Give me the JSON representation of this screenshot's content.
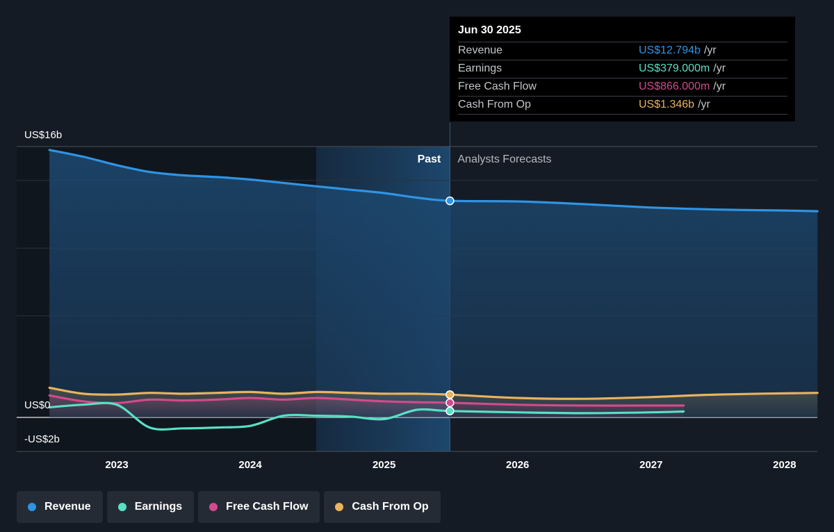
{
  "chart_data": {
    "type": "line",
    "x_ticks": [
      "2023",
      "2024",
      "2025",
      "2026",
      "2027",
      "2028"
    ],
    "y_ticks": [
      {
        "value": 16,
        "label": "US$16b"
      },
      {
        "value": 0,
        "label": "US$0"
      },
      {
        "value": -2,
        "label": "-US$2b"
      }
    ],
    "ylim": [
      -2,
      16
    ],
    "divider_labels": {
      "past": "Past",
      "forecast": "Analysts Forecasts"
    },
    "series": [
      {
        "name": "Revenue",
        "color": "#2f94e4",
        "x": [
          "2022-07-01",
          "2022-10-01",
          "2023-01-01",
          "2023-04-01",
          "2023-07-01",
          "2023-10-01",
          "2024-01-01",
          "2024-04-01",
          "2024-07-01",
          "2024-10-01",
          "2025-01-01",
          "2025-04-01",
          "2025-06-30",
          "2025-12-31",
          "2026-06-30",
          "2026-12-31",
          "2027-06-30",
          "2027-12-31",
          "2028-03-31"
        ],
        "values": [
          15.8,
          15.4,
          14.9,
          14.5,
          14.3,
          14.2,
          14.05,
          13.85,
          13.65,
          13.45,
          13.25,
          12.98,
          12.794,
          12.76,
          12.6,
          12.4,
          12.28,
          12.22,
          12.18
        ]
      },
      {
        "name": "Earnings",
        "color": "#58e0c5",
        "x": [
          "2022-07-01",
          "2022-10-01",
          "2023-01-01",
          "2023-04-01",
          "2023-07-01",
          "2023-10-01",
          "2024-01-01",
          "2024-04-01",
          "2024-07-01",
          "2024-10-01",
          "2025-01-01",
          "2025-04-01",
          "2025-06-30",
          "2025-12-31",
          "2026-06-30",
          "2026-12-31",
          "2027-03-31"
        ],
        "values": [
          0.6,
          0.75,
          0.75,
          -0.6,
          -0.65,
          -0.6,
          -0.5,
          0.1,
          0.1,
          0.05,
          -0.1,
          0.45,
          0.379,
          0.3,
          0.25,
          0.3,
          0.35
        ]
      },
      {
        "name": "Free Cash Flow",
        "color": "#d14b8d",
        "x": [
          "2022-07-01",
          "2022-10-01",
          "2023-01-01",
          "2023-04-01",
          "2023-07-01",
          "2023-10-01",
          "2024-01-01",
          "2024-04-01",
          "2024-07-01",
          "2024-10-01",
          "2025-01-01",
          "2025-04-01",
          "2025-06-30",
          "2025-12-31",
          "2026-06-30",
          "2026-12-31",
          "2027-03-31"
        ],
        "values": [
          1.3,
          0.95,
          0.85,
          1.05,
          1.0,
          1.05,
          1.15,
          1.05,
          1.15,
          1.05,
          0.95,
          0.9,
          0.866,
          0.75,
          0.7,
          0.7,
          0.7
        ]
      },
      {
        "name": "Cash From Op",
        "color": "#e9b35f",
        "x": [
          "2022-07-01",
          "2022-10-01",
          "2023-01-01",
          "2023-04-01",
          "2023-07-01",
          "2023-10-01",
          "2024-01-01",
          "2024-04-01",
          "2024-07-01",
          "2024-10-01",
          "2025-01-01",
          "2025-04-01",
          "2025-06-30",
          "2025-12-31",
          "2026-06-30",
          "2026-12-31",
          "2027-06-30",
          "2028-03-31"
        ],
        "values": [
          1.75,
          1.4,
          1.35,
          1.45,
          1.4,
          1.45,
          1.5,
          1.4,
          1.5,
          1.45,
          1.4,
          1.4,
          1.346,
          1.15,
          1.1,
          1.2,
          1.35,
          1.45
        ]
      }
    ]
  },
  "tooltip": {
    "date": "Jun 30 2025",
    "rows": [
      {
        "label": "Revenue",
        "value": "US$12.794b",
        "unit": "/yr",
        "color": "#2f94e4"
      },
      {
        "label": "Earnings",
        "value": "US$379.000m",
        "unit": "/yr",
        "color": "#58e0c5"
      },
      {
        "label": "Free Cash Flow",
        "value": "US$866.000m",
        "unit": "/yr",
        "color": "#d14b8d"
      },
      {
        "label": "Cash From Op",
        "value": "US$1.346b",
        "unit": "/yr",
        "color": "#e9b35f"
      }
    ]
  },
  "legend": [
    {
      "label": "Revenue",
      "color": "#2f94e4"
    },
    {
      "label": "Earnings",
      "color": "#58e0c5"
    },
    {
      "label": "Free Cash Flow",
      "color": "#d14b8d"
    },
    {
      "label": "Cash From Op",
      "color": "#e9b35f"
    }
  ]
}
